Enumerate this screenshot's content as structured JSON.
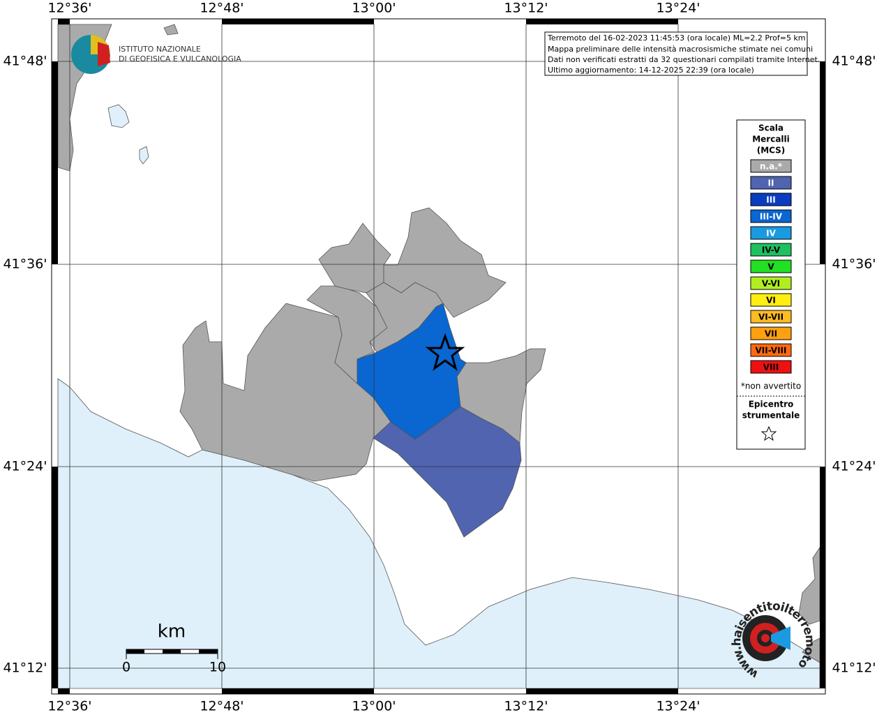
{
  "frame": {
    "x_labels": [
      "12°36'",
      "12°48'",
      "13°00'",
      "13°12'",
      "13°24'"
    ],
    "y_labels": [
      "41°48'",
      "41°36'",
      "41°24'",
      "41°12'"
    ]
  },
  "info": [
    "Terremoto del 16-02-2023 11:45:53 (ora locale) ML=2.2 Prof=5 km",
    "Mappa preliminare delle intensità macrosismiche stimate nei comuni",
    "Dati non verificati estratti da 32 questionari compilati tramite Internet.",
    "Ultimo aggiornamento: 14-12-2025 22:39 (ora locale)"
  ],
  "logo": {
    "line1": "ISTITUTO NAZIONALE",
    "line2": "DI GEOFISICA E VULCANOLOGIA"
  },
  "legend": {
    "title": [
      "Scala",
      "Mercalli",
      "(MCS)"
    ],
    "items": [
      {
        "label": "n.a.*",
        "color": "#aaaaaa"
      },
      {
        "label": "II",
        "color": "#5064b0"
      },
      {
        "label": "III",
        "color": "#0a3cc0"
      },
      {
        "label": "III-IV",
        "color": "#0a66d0"
      },
      {
        "label": "IV",
        "color": "#1a9ae0"
      },
      {
        "label": "IV-V",
        "color": "#1fc060"
      },
      {
        "label": "V",
        "color": "#22e022"
      },
      {
        "label": "V-VI",
        "color": "#b0ee22"
      },
      {
        "label": "VI",
        "color": "#ffee11"
      },
      {
        "label": "VI-VII",
        "color": "#ffbb22"
      },
      {
        "label": "VII",
        "color": "#ffa010"
      },
      {
        "label": "VII-VIII",
        "color": "#ff6a10"
      },
      {
        "label": "VIII",
        "color": "#ee1111"
      }
    ],
    "note": "*non avvertito",
    "epicenter": [
      "Epicentro",
      "strumentale"
    ]
  },
  "scale_bar": {
    "unit": "km",
    "start": "0",
    "end": "10"
  },
  "site_logo": "www.haisentitoilterremoto.it"
}
